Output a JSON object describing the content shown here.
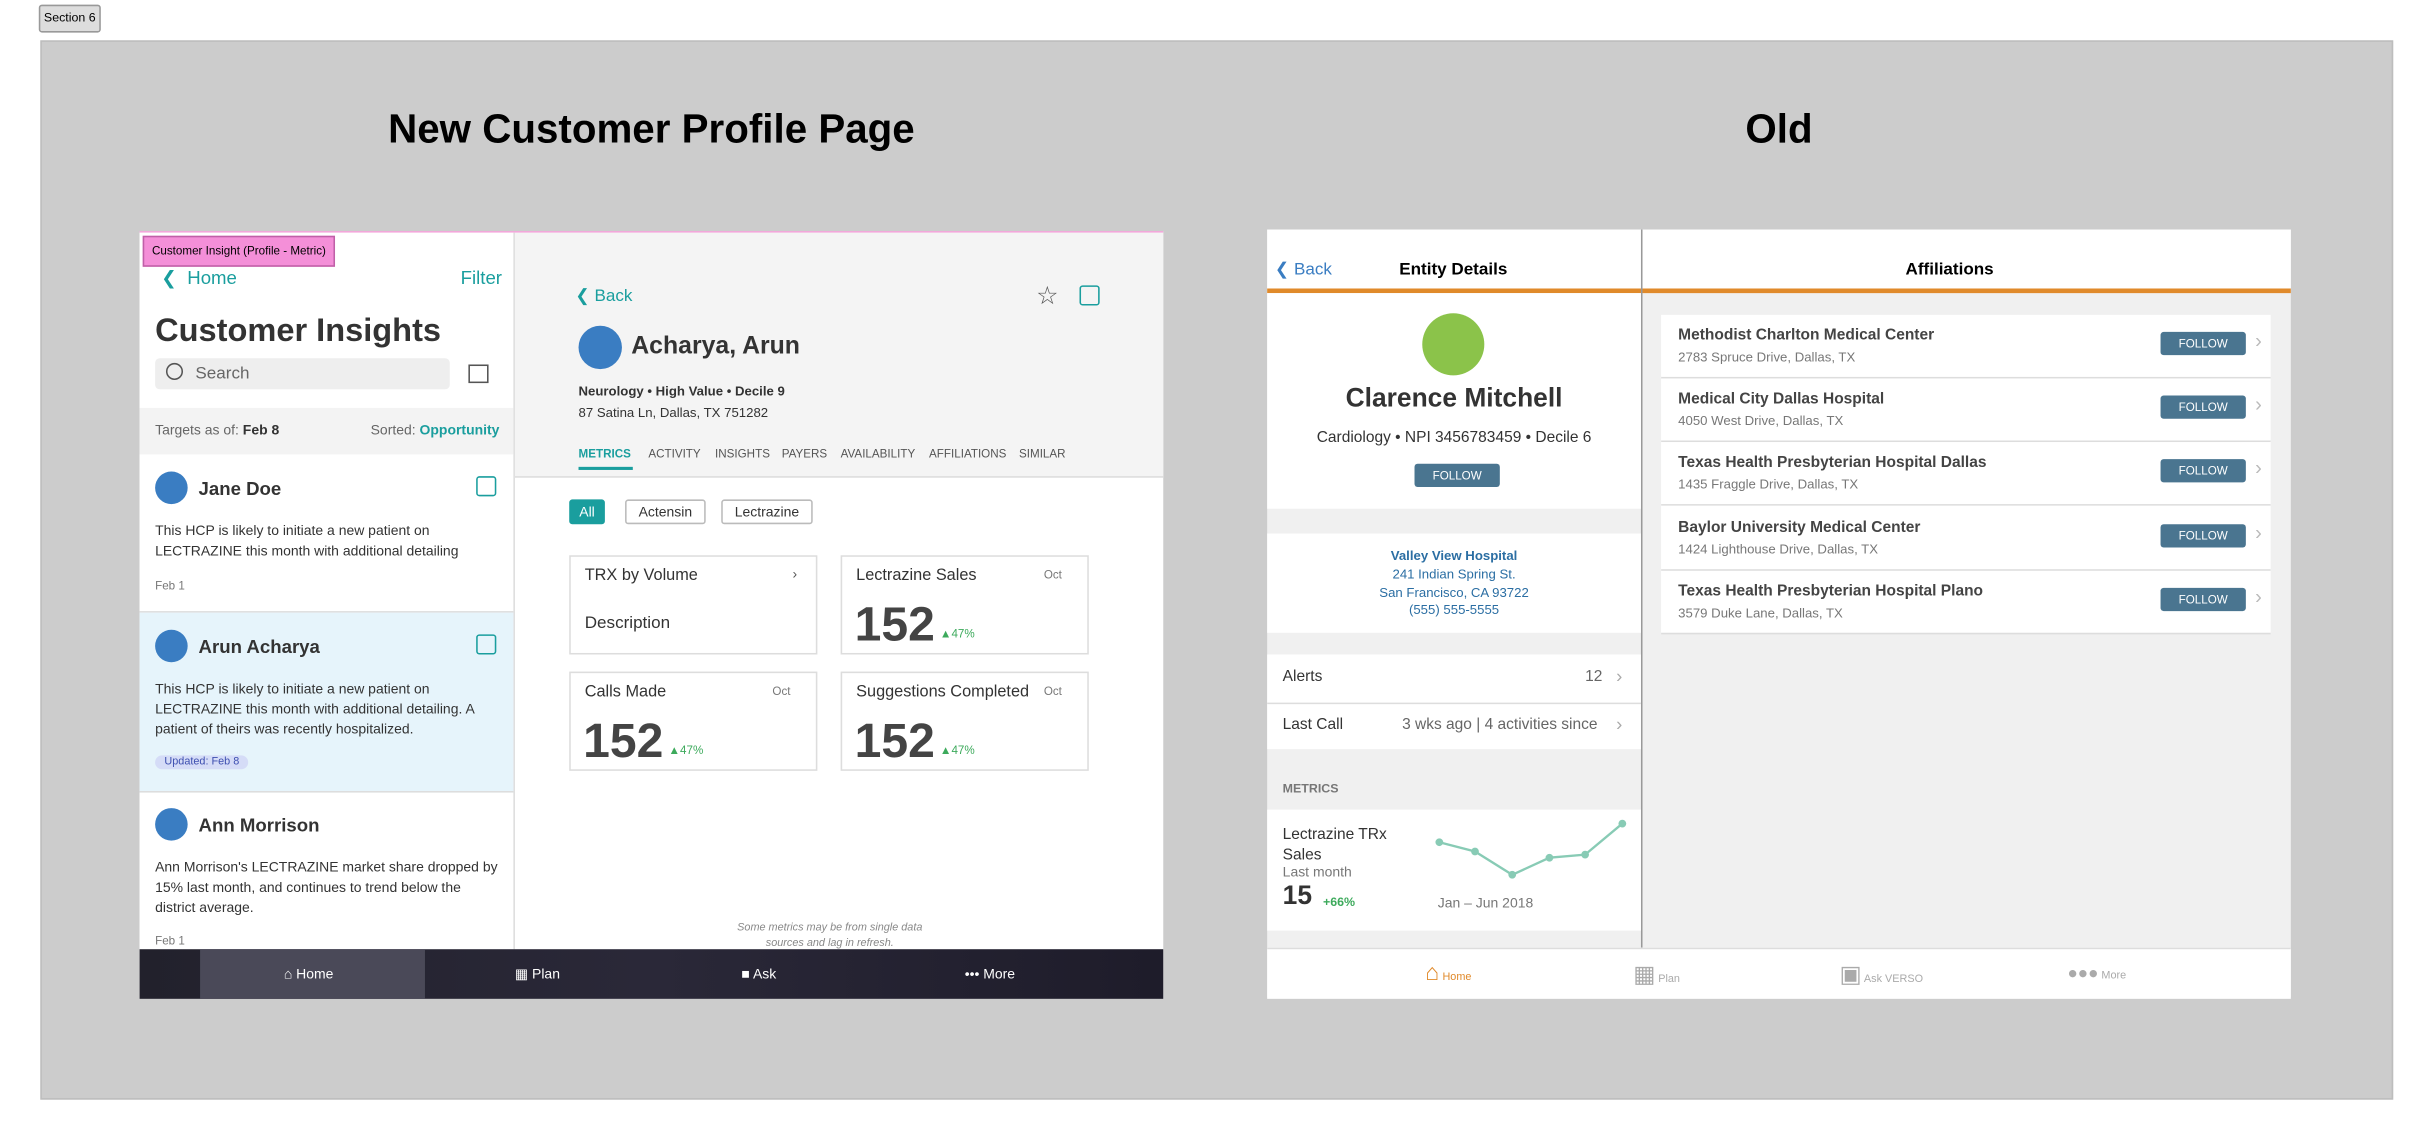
{
  "section_label": "Section 6",
  "new_page": {
    "title": "New Customer Profile Page",
    "tag": "Customer Insight (Profile - Metric)",
    "sidebar": {
      "back": "Home",
      "filter": "Filter",
      "title": "Customer Insights",
      "search_placeholder": "Search",
      "targets_label": "Targets as of:",
      "targets_date": "Feb 8",
      "sorted_label": "Sorted:",
      "sorted_value": "Opportunity",
      "items": [
        {
          "name": "Jane Doe",
          "text": "This HCP is likely to initiate a new patient on LECTRAZINE this month with additional detailing",
          "date": "Feb 1"
        },
        {
          "name": "Arun Acharya",
          "text": "This HCP is likely to initiate a new patient on LECTRAZINE this month with additional detailing. A patient of theirs was recently hospitalized.",
          "badge": "Updated: Feb 8"
        },
        {
          "name": "Ann Morrison",
          "text": "Ann Morrison's LECTRAZINE market share dropped by 15% last month, and continues to trend below the district average.",
          "date": "Feb 1"
        }
      ]
    },
    "profile": {
      "back": "Back",
      "name": "Acharya, Arun",
      "details": "Neurology • High Value • Decile 9",
      "address": "87 Satina Ln, Dallas, TX 751282",
      "tabs": [
        "METRICS",
        "ACTIVITY",
        "INSIGHTS",
        "PAYERS",
        "AVAILABILITY",
        "AFFILIATIONS",
        "SIMILAR"
      ],
      "filters": [
        "All",
        "Actensin",
        "Lectrazine"
      ],
      "cards": [
        {
          "title": "TRX by Volume",
          "description": "Description"
        },
        {
          "title": "Lectrazine Sales",
          "period": "Oct",
          "value": "152",
          "change": "47%"
        },
        {
          "title": "Calls Made",
          "period": "Oct",
          "value": "152",
          "change": "47%"
        },
        {
          "title": "Suggestions Completed",
          "period": "Oct",
          "value": "152",
          "change": "47%"
        }
      ],
      "footnote": "Some metrics may be from single data sources and lag in refresh."
    },
    "nav": [
      "Home",
      "Plan",
      "Ask",
      "More"
    ]
  },
  "old_page": {
    "title": "Old",
    "entity": {
      "back": "Back",
      "header": "Entity Details",
      "name": "Clarence Mitchell",
      "details": "Cardiology • NPI 3456783459 • Decile 6",
      "follow": "FOLLOW",
      "hospital": [
        "Valley View Hospital",
        "241 Indian Spring St.",
        "San Francisco, CA 93722",
        "(555) 555-5555"
      ],
      "alerts_label": "Alerts",
      "alerts_count": "12",
      "last_call_label": "Last Call",
      "last_call_value": "3 wks ago | 4 activities since",
      "metrics_label": "METRICS",
      "metric_name": "Lectrazine TRx Sales",
      "metric_period": "Last month",
      "metric_value": "15",
      "metric_change": "+66%",
      "metric_range": "Jan – Jun 2018"
    },
    "affiliations": {
      "header": "Affiliations",
      "follow": "FOLLOW",
      "rows": [
        {
          "name": "Methodist Charlton Medical Center",
          "address": "2783 Spruce Drive, Dallas, TX"
        },
        {
          "name": "Medical City Dallas Hospital",
          "address": "4050 West Drive, Dallas, TX"
        },
        {
          "name": "Texas Health Presbyterian Hospital Dallas",
          "address": "1435 Fraggle Drive, Dallas, TX"
        },
        {
          "name": "Baylor University Medical Center",
          "address": "1424 Lighthouse Drive, Dallas, TX"
        },
        {
          "name": "Texas Health Presbyterian Hospital Plano",
          "address": "3579 Duke Lane, Dallas, TX"
        }
      ]
    },
    "nav": [
      "Home",
      "Plan",
      "Ask VERSO",
      "More"
    ]
  }
}
